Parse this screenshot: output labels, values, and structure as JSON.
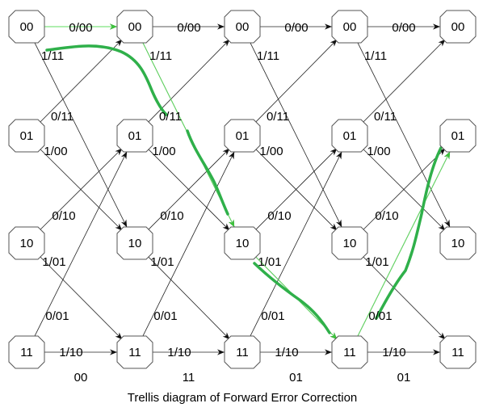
{
  "nodes": [
    "00",
    "01",
    "10",
    "11",
    "00",
    "01",
    "10",
    "11",
    "00",
    "01",
    "10",
    "11",
    "00",
    "01",
    "10",
    "11",
    "00",
    "01",
    "10",
    "11"
  ],
  "stages": [
    {
      "edges": [
        "0/00",
        "1/11",
        "0/11",
        "1/00",
        "0/10",
        "1/01",
        "0/01",
        "1/10"
      ],
      "input": "00"
    },
    {
      "edges": [
        "0/00",
        "1/11",
        "0/11",
        "1/00",
        "0/10",
        "1/01",
        "0/01",
        "1/10"
      ],
      "input": "11"
    },
    {
      "edges": [
        "0/00",
        "1/11",
        "0/11",
        "1/00",
        "0/10",
        "1/01",
        "0/01",
        "1/10"
      ],
      "input": "01"
    },
    {
      "edges": [
        "0/00",
        "1/11",
        "0/11",
        "1/00",
        "0/10",
        "1/01",
        "0/01",
        "1/10"
      ],
      "input": "01"
    }
  ],
  "caption": "Trellis diagram of Forward Error Correction"
}
